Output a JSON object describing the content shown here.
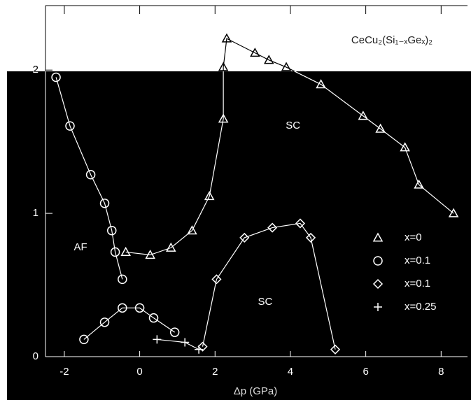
{
  "chart_data": {
    "type": "scatter",
    "title": "CeCu₂(Si₁₋ₓGeₓ)₂",
    "x_label": "Δp (GPa)",
    "xlim": [
      -2.5,
      8.7
    ],
    "ylim": [
      0,
      2.45
    ],
    "xticks": [
      -2,
      0,
      2,
      4,
      6,
      8
    ],
    "yticks": [
      0,
      1,
      2
    ],
    "legend": "right",
    "series": [
      {
        "name": "x=0",
        "marker": "triangle",
        "color": "#ffffff",
        "x": [
          -0.37,
          0.28,
          0.83,
          1.39,
          1.85,
          2.22,
          2.22,
          2.31,
          3.06,
          3.43,
          3.89,
          4.81,
          5.93,
          6.39,
          7.04,
          7.41,
          8.33
        ],
        "y": [
          0.73,
          0.71,
          0.76,
          0.88,
          1.12,
          1.66,
          2.02,
          2.22,
          2.12,
          2.07,
          2.02,
          1.9,
          1.68,
          1.59,
          1.46,
          1.2,
          1.0
        ]
      },
      {
        "name": "x=0.1",
        "marker": "circle",
        "color": "#ffffff",
        "x": [
          -2.22,
          -1.85,
          -1.3,
          -0.93,
          -0.74,
          -0.65,
          -0.46,
          null,
          -1.48,
          -0.93,
          -0.46,
          0,
          0.37,
          0.93
        ],
        "y": [
          1.95,
          1.61,
          1.27,
          1.07,
          0.88,
          0.73,
          0.54,
          null,
          0.12,
          0.24,
          0.34,
          0.34,
          0.27,
          0.17
        ]
      },
      {
        "name": "x=0.1",
        "marker": "diamond",
        "color": "#ffffff",
        "x": [
          1.67,
          2.04,
          2.78,
          3.52,
          4.26,
          4.54,
          5.19
        ],
        "y": [
          0.07,
          0.54,
          0.83,
          0.9,
          0.93,
          0.83,
          0.05
        ]
      },
      {
        "name": "x=0.25",
        "marker": "plus",
        "color": "#ffffff",
        "x": [
          0.46,
          1.2,
          1.57
        ],
        "y": [
          0.12,
          0.1,
          0.05
        ]
      }
    ],
    "annotations": [
      {
        "text": "SC",
        "x": 4.07,
        "y": 1.61
      },
      {
        "text": "AF",
        "x": -1.57,
        "y": 0.76
      },
      {
        "text": "SC",
        "x": 3.33,
        "y": 0.38
      }
    ]
  }
}
